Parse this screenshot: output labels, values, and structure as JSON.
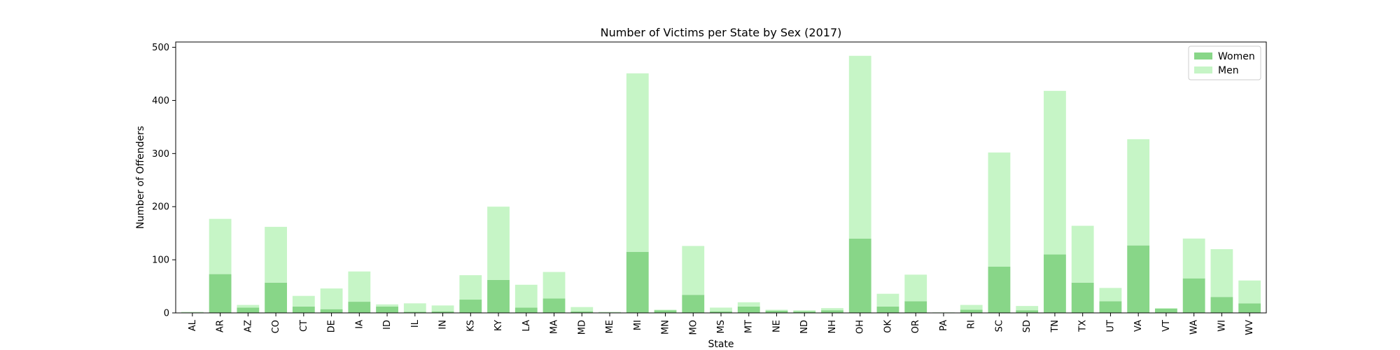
{
  "chart_data": {
    "type": "bar",
    "stacked": true,
    "title": "Number of Victims per State by Sex (2017)",
    "xlabel": "State",
    "ylabel": "Number of Offenders",
    "ylim": [
      0,
      510
    ],
    "yticks": [
      0,
      100,
      200,
      300,
      400,
      500
    ],
    "grid": false,
    "legend": "top-right",
    "categories": [
      "AL",
      "AR",
      "AZ",
      "CO",
      "CT",
      "DE",
      "IA",
      "ID",
      "IL",
      "IN",
      "KS",
      "KY",
      "LA",
      "MA",
      "MD",
      "ME",
      "MI",
      "MN",
      "MO",
      "MS",
      "MT",
      "NE",
      "ND",
      "NH",
      "OH",
      "OK",
      "OR",
      "PA",
      "RI",
      "SC",
      "SD",
      "TN",
      "TX",
      "UT",
      "VA",
      "VT",
      "WA",
      "WI",
      "WV"
    ],
    "series": [
      {
        "name": "Women",
        "color": "#88d688",
        "values": [
          1,
          73,
          10,
          57,
          12,
          7,
          21,
          12,
          2,
          3,
          25,
          62,
          10,
          27,
          3,
          1,
          115,
          5,
          34,
          3,
          12,
          4,
          3,
          5,
          140,
          12,
          22,
          0,
          6,
          87,
          5,
          110,
          57,
          22,
          127,
          8,
          65,
          30,
          18
        ]
      },
      {
        "name": "Men",
        "color": "#c6f5c6",
        "values": [
          1,
          104,
          5,
          105,
          20,
          39,
          57,
          4,
          16,
          11,
          46,
          138,
          43,
          50,
          8,
          1,
          336,
          1,
          92,
          7,
          8,
          2,
          2,
          4,
          344,
          24,
          50,
          1,
          9,
          215,
          8,
          308,
          107,
          25,
          200,
          1,
          75,
          90,
          43
        ]
      }
    ]
  }
}
